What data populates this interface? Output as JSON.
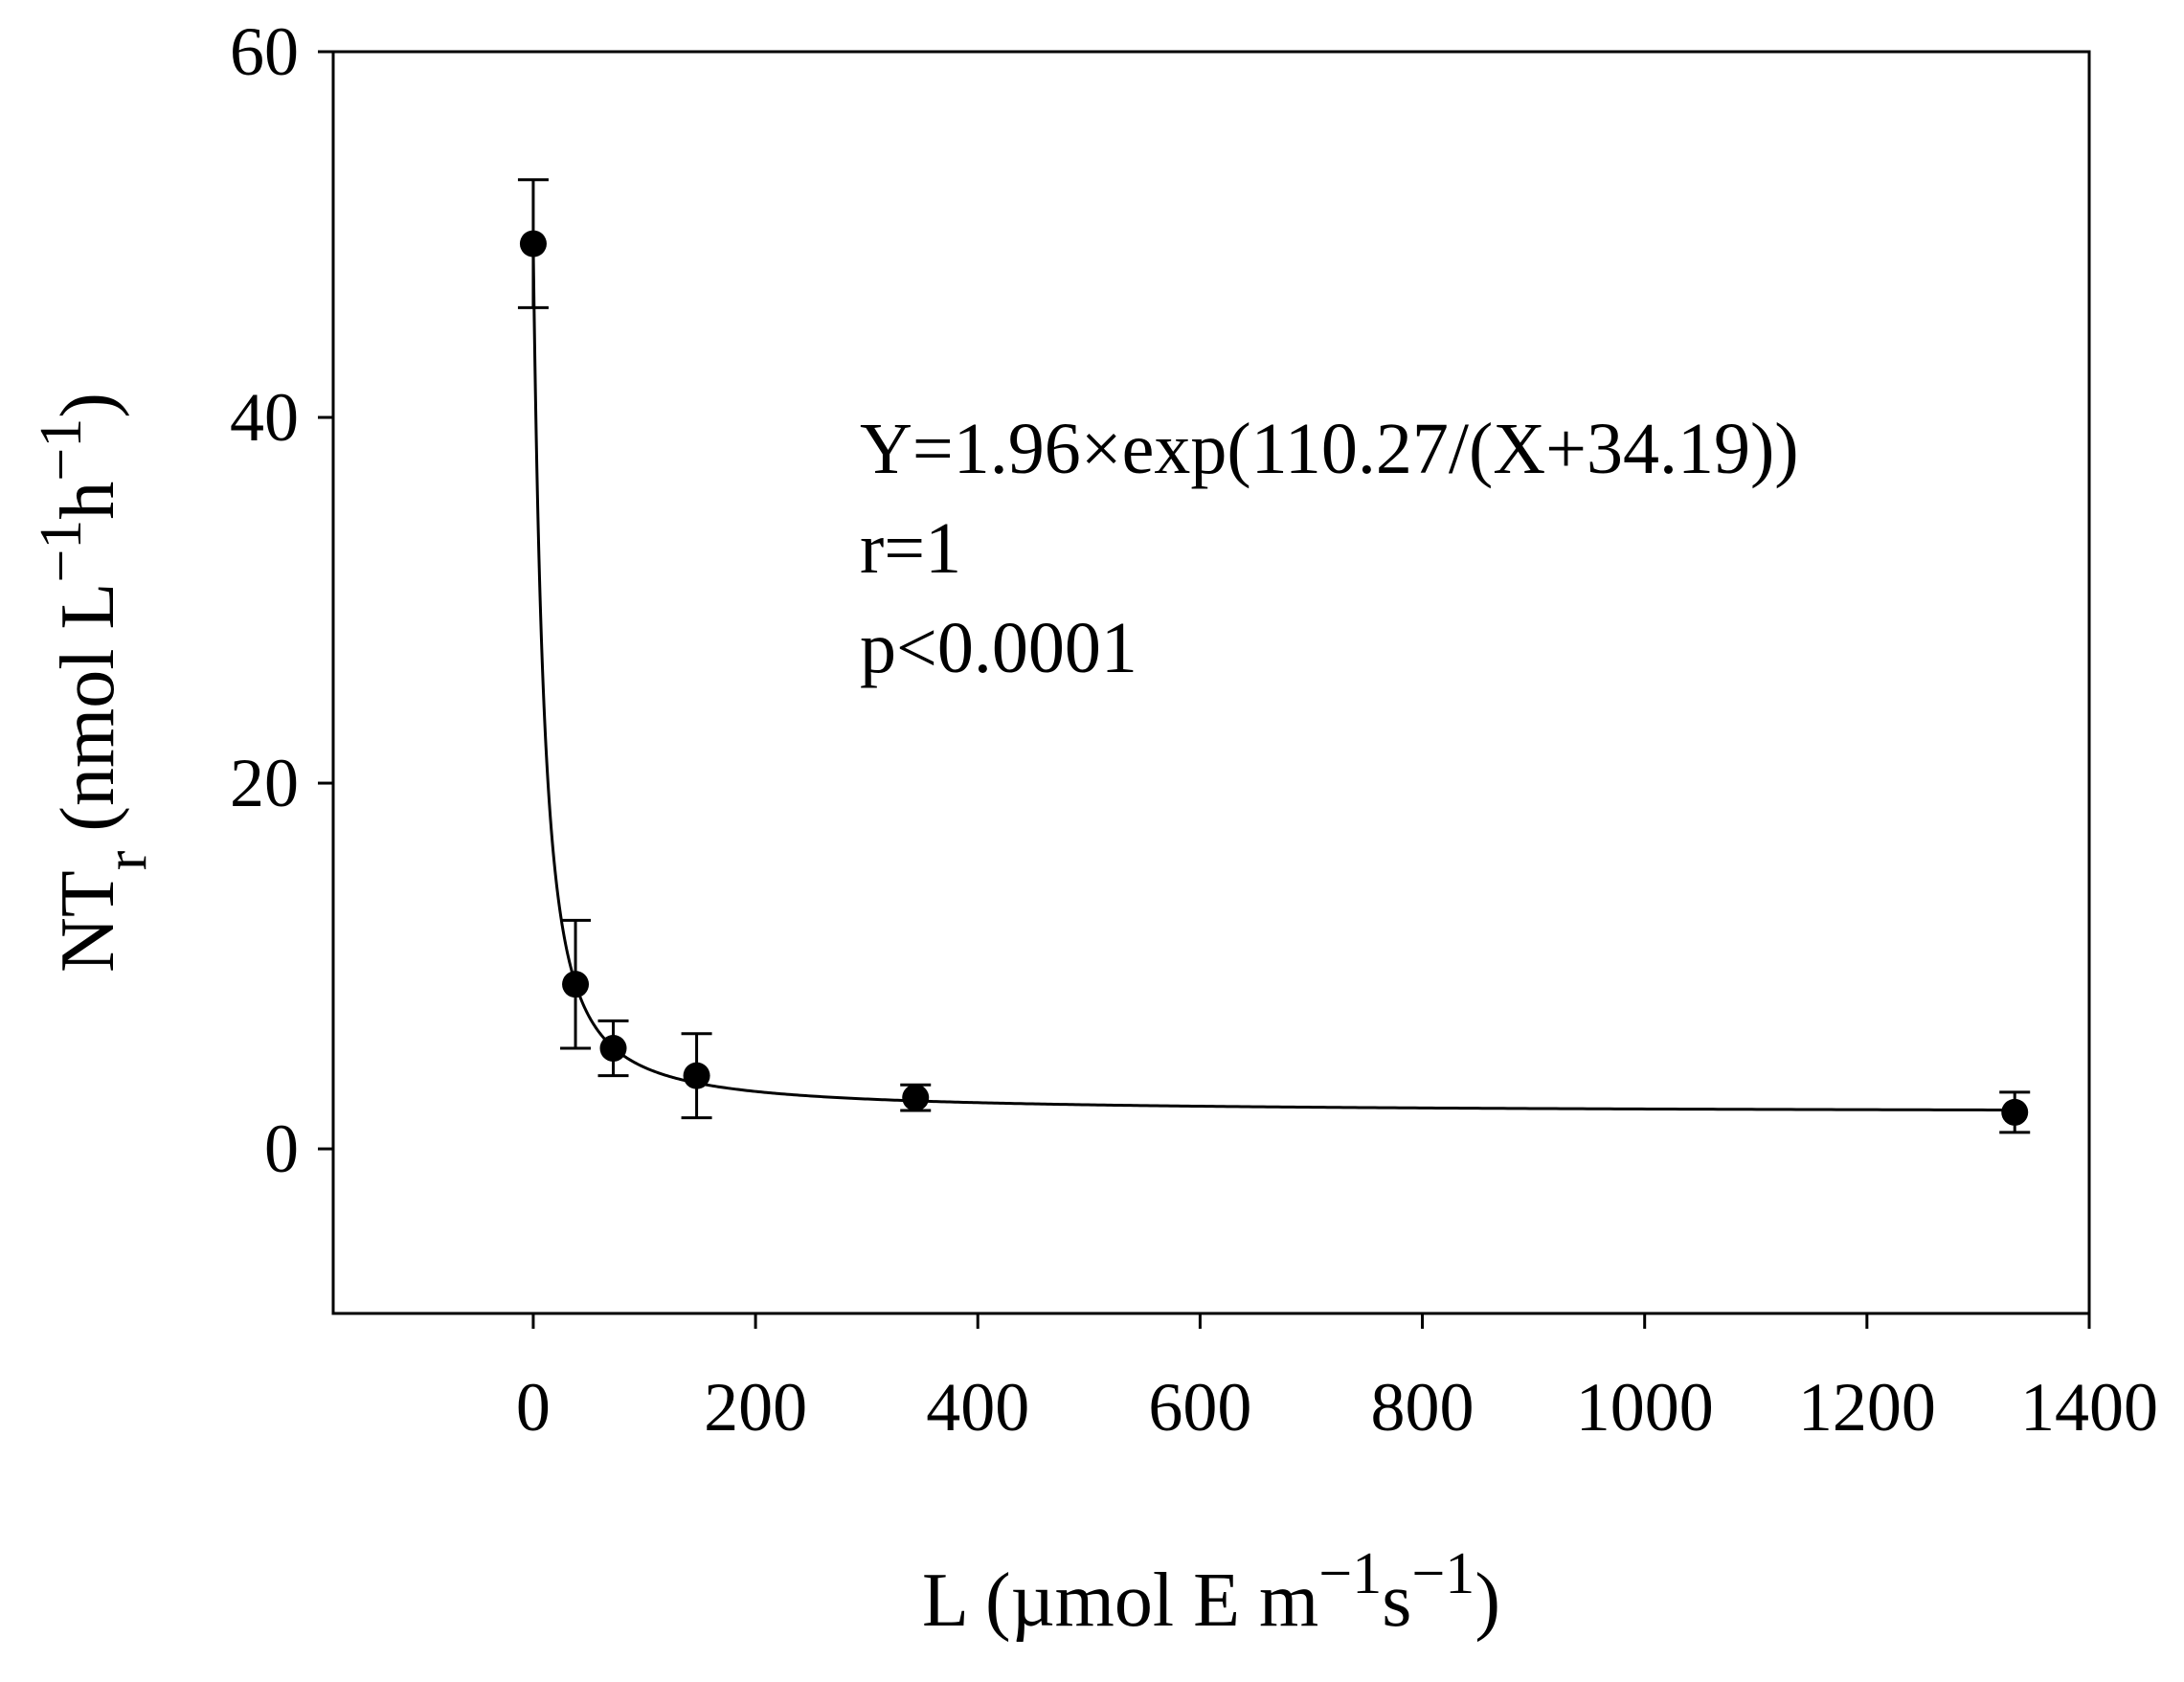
{
  "chart_data": {
    "type": "scatter",
    "title": "",
    "xlabel": {
      "parts": [
        {
          "text": "L (µmol E m",
          "sup": false
        },
        {
          "text": "−1",
          "sup": true
        },
        {
          "text": "s",
          "sup": false
        },
        {
          "text": "−1",
          "sup": true
        },
        {
          "text": ")",
          "sup": false
        }
      ]
    },
    "ylabel": {
      "parts": [
        {
          "text": "NT",
          "sub": false,
          "sup": false
        },
        {
          "text": "r",
          "sub": true,
          "sup": false
        },
        {
          "text": " (nmol L",
          "sub": false,
          "sup": false
        },
        {
          "text": "−1",
          "sub": false,
          "sup": true
        },
        {
          "text": "h",
          "sub": false,
          "sup": false
        },
        {
          "text": "−1",
          "sub": false,
          "sup": true
        },
        {
          "text": ")",
          "sub": false,
          "sup": false
        }
      ]
    },
    "xlim": [
      -180,
      1400
    ],
    "ylim": [
      -9,
      60
    ],
    "xticks": [
      0,
      200,
      400,
      600,
      800,
      1000,
      1200,
      1400
    ],
    "xtick_labels": [
      "0",
      "200",
      "400",
      "600",
      "800",
      "1000",
      "1200",
      "1400"
    ],
    "yticks": [
      0,
      20,
      40,
      60
    ],
    "ytick_labels": [
      "0",
      "20",
      "40",
      "60"
    ],
    "grid": false,
    "series": [
      {
        "points": [
          {
            "x": 0,
            "y": 49.5,
            "err": 3.5
          },
          {
            "x": 38,
            "y": 9,
            "err": 3.5
          },
          {
            "x": 72,
            "y": 5.5,
            "err": 1.5
          },
          {
            "x": 147,
            "y": 4,
            "err": 2.3
          },
          {
            "x": 344,
            "y": 2.8,
            "err": 0.7
          },
          {
            "x": 1333,
            "y": 2,
            "err": 1.1
          }
        ],
        "color": "#000000",
        "marker": "filled-circle"
      }
    ],
    "fit": {
      "formula": "Y = a × exp(b / (X + c))",
      "a": 1.96,
      "b": 110.27,
      "c": 34.19,
      "x_range": [
        0,
        1333
      ]
    },
    "annotations": [
      "Y=1.96×exp(110.27/(X+34.19))",
      "r=1",
      "p<0.0001"
    ]
  }
}
